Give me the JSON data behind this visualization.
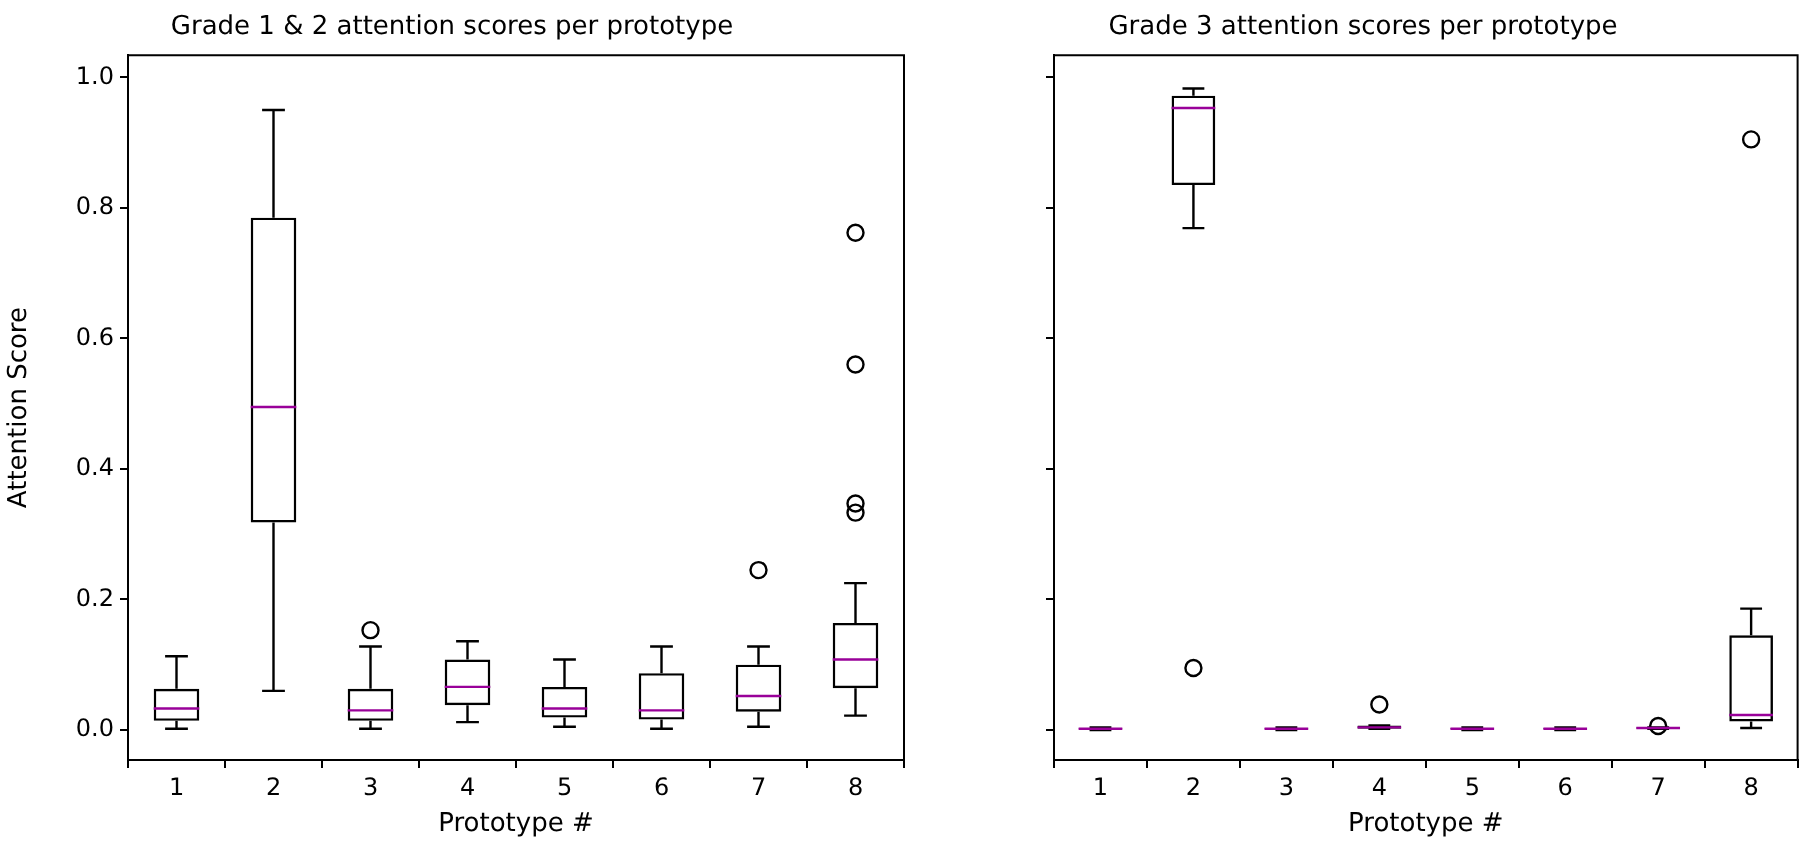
{
  "chart_data": [
    {
      "type": "box",
      "title": "Grade 1 & 2 attention scores per prototype",
      "xlabel": "Prototype #",
      "ylabel": "Attention Score",
      "categories": [
        "1",
        "2",
        "3",
        "4",
        "5",
        "6",
        "7",
        "8"
      ],
      "ylim": [
        -0.046,
        1.034
      ],
      "yticks": [
        {
          "value": 0,
          "label": "0.0"
        },
        0.2,
        0.4,
        0.6,
        0.8,
        {
          "value": 1,
          "label": "1.0"
        }
      ],
      "grid": false,
      "legend": false,
      "marker": "circle",
      "series": [
        {
          "color": "#000000",
          "boxes": [
            {
              "low": 0.002,
              "q1": 0.014,
              "median": 0.033,
              "q3": 0.063,
              "high": 0.113
            },
            {
              "low": 0.06,
              "q1": 0.318,
              "median": 0.495,
              "q3": 0.785,
              "high": 0.95
            },
            {
              "low": 0.002,
              "q1": 0.014,
              "median": 0.03,
              "q3": 0.063,
              "high": 0.128,
              "outliers": [
                0.153
              ]
            },
            {
              "low": 0.012,
              "q1": 0.038,
              "median": 0.066,
              "q3": 0.108,
              "high": 0.136
            },
            {
              "low": 0.005,
              "q1": 0.019,
              "median": 0.033,
              "q3": 0.066,
              "high": 0.108
            },
            {
              "low": 0.002,
              "q1": 0.016,
              "median": 0.03,
              "q3": 0.087,
              "high": 0.128
            },
            {
              "low": 0.005,
              "q1": 0.028,
              "median": 0.052,
              "q3": 0.1,
              "high": 0.128,
              "outliers": [
                0.245
              ]
            },
            {
              "low": 0.022,
              "q1": 0.064,
              "median": 0.108,
              "q3": 0.164,
              "high": 0.225,
              "outliers": [
                0.762,
                0.56,
                0.347,
                0.333
              ]
            }
          ]
        }
      ]
    },
    {
      "type": "box",
      "title": "Grade 3 attention scores per prototype",
      "xlabel": "Prototype #",
      "categories": [
        "1",
        "2",
        "3",
        "4",
        "5",
        "6",
        "7",
        "8"
      ],
      "ylim": [
        -0.046,
        1.034
      ],
      "yticks": [
        0,
        0.2,
        0.4,
        0.6,
        0.8,
        1
      ],
      "tick_labels": "x",
      "grid": false,
      "legend": false,
      "marker": "circle",
      "series": [
        {
          "color": "#000000",
          "boxes": [
            {
              "low": 0,
              "q1": 0.001,
              "median": 0.002,
              "q3": 0.003,
              "high": 0.004
            },
            {
              "low": 0.769,
              "q1": 0.835,
              "median": 0.953,
              "q3": 0.972,
              "high": 0.983,
              "outliers": [
                0.095
              ]
            },
            {
              "low": 0,
              "q1": 0.001,
              "median": 0.002,
              "q3": 0.003,
              "high": 0.004
            },
            {
              "low": 0.002,
              "q1": 0.002,
              "median": 0.004,
              "q3": 0.007,
              "high": 0.007,
              "outliers": [
                0.039
              ]
            },
            {
              "low": 0,
              "q1": 0.001,
              "median": 0.002,
              "q3": 0.003,
              "high": 0.004
            },
            {
              "low": 0,
              "q1": 0.001,
              "median": 0.002,
              "q3": 0.003,
              "high": 0.004
            },
            {
              "low": 0.002,
              "q1": 0.002,
              "median": 0.003,
              "q3": 0.004,
              "high": 0.004,
              "outliers": [
                0.006
              ]
            },
            {
              "low": 0.003,
              "q1": 0.013,
              "median": 0.023,
              "q3": 0.145,
              "high": 0.186,
              "outliers": [
                0.905
              ]
            }
          ]
        }
      ]
    }
  ]
}
